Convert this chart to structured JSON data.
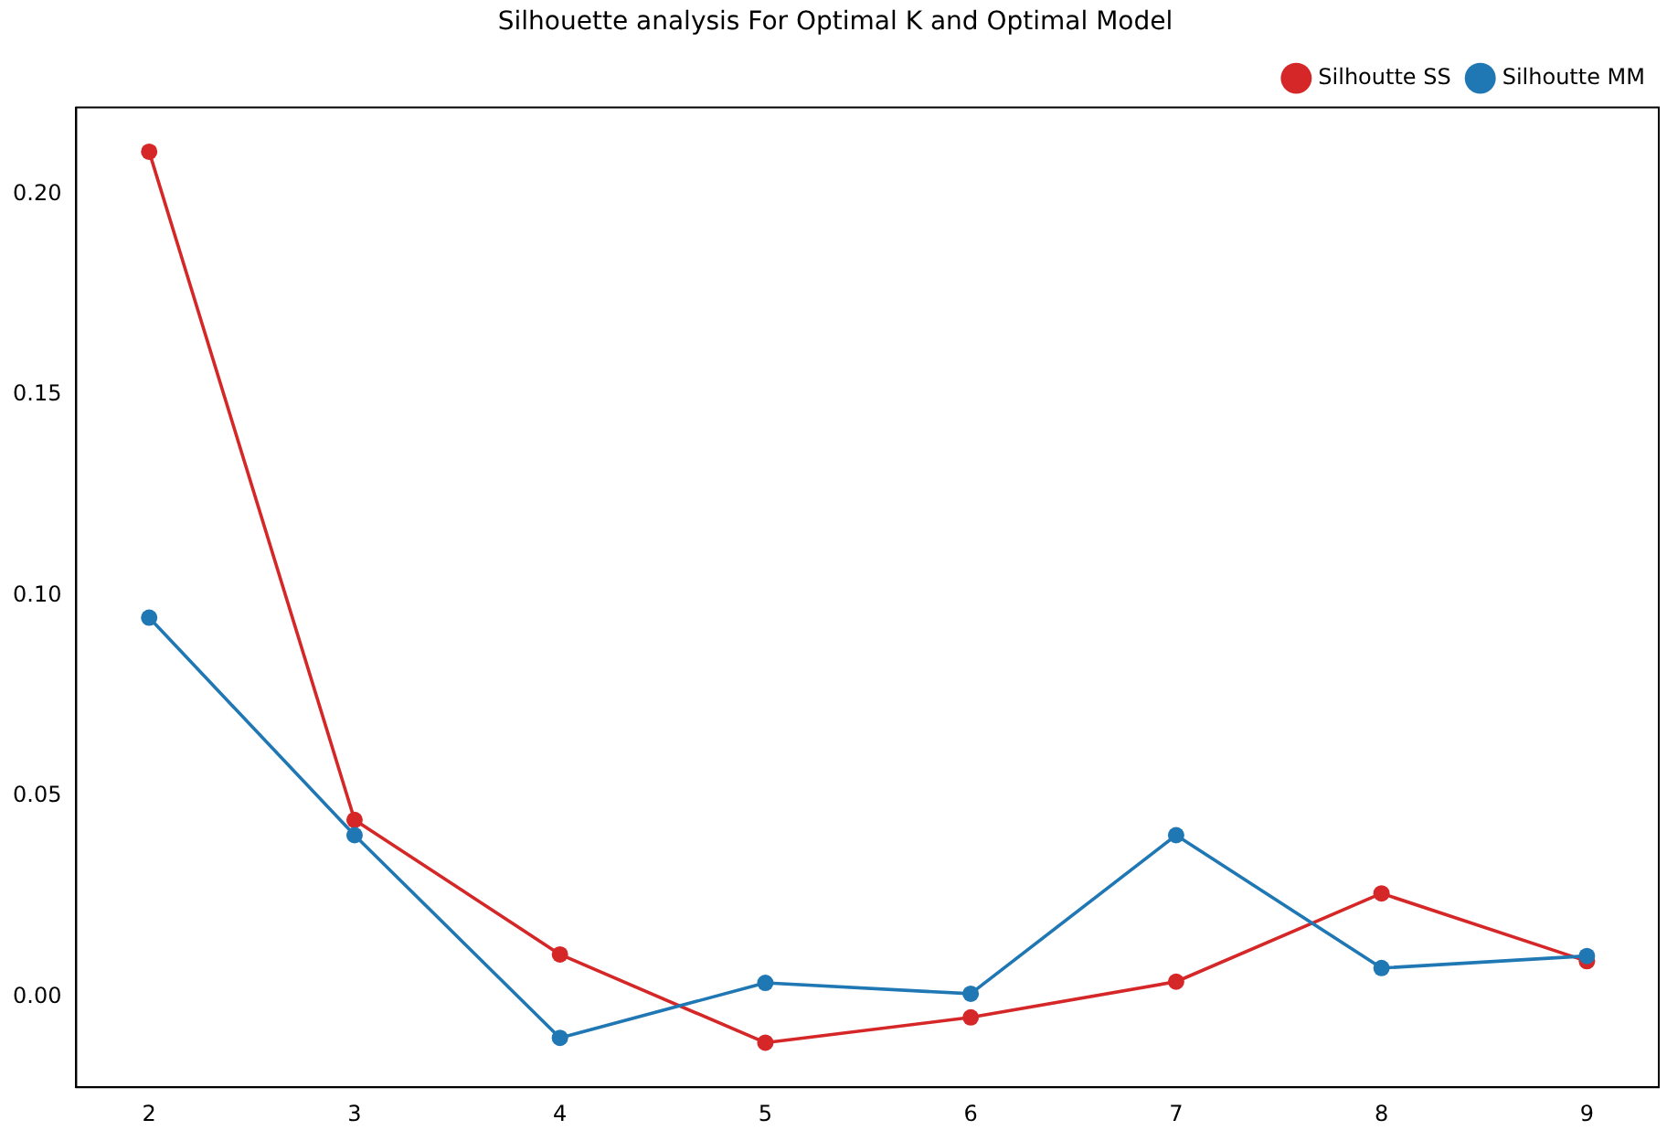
{
  "chart_data": {
    "type": "line",
    "title": "Silhouette analysis For Optimal K and Optimal Model",
    "x": [
      2,
      3,
      4,
      5,
      6,
      7,
      8,
      9
    ],
    "series": [
      {
        "name": "Silhoutte SS",
        "color": "#d62728",
        "values": [
          0.2106,
          0.0441,
          0.0106,
          -0.0114,
          -0.0051,
          0.0038,
          0.0258,
          0.0089
        ]
      },
      {
        "name": "Silhoutte MM",
        "color": "#1f77b4",
        "values": [
          0.0945,
          0.0403,
          -0.0102,
          0.0035,
          0.0008,
          0.0403,
          0.0072,
          0.0102
        ]
      }
    ],
    "xlim": [
      1.645,
      9.35
    ],
    "ylim": [
      -0.0225,
      0.2216
    ],
    "xticks": [
      2,
      3,
      4,
      5,
      6,
      7,
      8,
      9
    ],
    "yticks": [
      {
        "value": 0,
        "label": "0.00"
      },
      {
        "value": 0.05,
        "label": "0.05"
      },
      {
        "value": 0.1,
        "label": "0.10"
      },
      {
        "value": 0.15,
        "label": "0.15"
      },
      {
        "value": 0.2,
        "label": "0.20"
      }
    ],
    "grid": false,
    "legend": "top right",
    "marker": "circle",
    "line_style": "solid"
  }
}
